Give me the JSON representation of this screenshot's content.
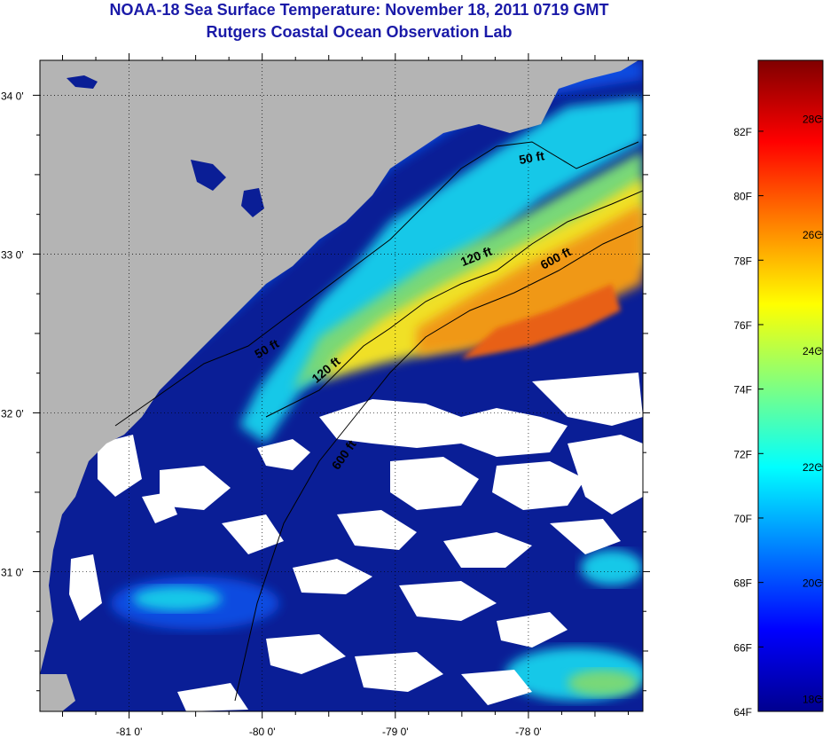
{
  "title": {
    "line1": "NOAA-18 Sea Surface Temperature:  November 18, 2011 0719 GMT",
    "line2": "Rutgers Coastal Ocean Observation Lab"
  },
  "map": {
    "lon_ticks": [
      {
        "value": -81,
        "label": "-81 0'"
      },
      {
        "value": -80,
        "label": "-80 0'"
      },
      {
        "value": -79,
        "label": "-79 0'"
      },
      {
        "value": -78,
        "label": "-78 0'"
      }
    ],
    "lat_ticks": [
      {
        "value": 34,
        "label": "34 0'"
      },
      {
        "value": 33,
        "label": "33 0'"
      },
      {
        "value": 32,
        "label": "32 0'"
      },
      {
        "value": 31,
        "label": "31 0'"
      }
    ],
    "lon_range": [
      -81.67,
      -77.14
    ],
    "lat_range": [
      30.12,
      34.22
    ],
    "contour_labels": [
      {
        "text": "50 ft",
        "lon": -77.97,
        "lat": 33.58,
        "angle": -10
      },
      {
        "text": "120 ft",
        "lon": -78.38,
        "lat": 32.96,
        "angle": -22
      },
      {
        "text": "600 ft",
        "lon": -77.78,
        "lat": 32.95,
        "angle": -28
      },
      {
        "text": "50 ft",
        "lon": -79.95,
        "lat": 32.38,
        "angle": -30
      },
      {
        "text": "120 ft",
        "lon": -79.5,
        "lat": 32.25,
        "angle": -40
      },
      {
        "text": "600 ft",
        "lon": -79.36,
        "lat": 31.72,
        "angle": -55
      }
    ],
    "colors": {
      "land": "#b4b4b4",
      "cloud": "#ffffff",
      "deep_blue": "#0a1e96",
      "blue": "#0a4ce0",
      "cyan": "#18c8e8",
      "green": "#78d878",
      "yellow": "#f0e028",
      "orange": "#f09818",
      "red_orange": "#e86018"
    }
  },
  "colorbar": {
    "stops": [
      "#00008f",
      "#0000ff",
      "#0080ff",
      "#00ffff",
      "#80ff80",
      "#ffff00",
      "#ff8000",
      "#ff0000",
      "#800000"
    ],
    "fahrenheit_labels": [
      {
        "value": 64,
        "label": "64F"
      },
      {
        "value": 66,
        "label": "66F"
      },
      {
        "value": 68,
        "label": "68F"
      },
      {
        "value": 70,
        "label": "70F"
      },
      {
        "value": 72,
        "label": "72F"
      },
      {
        "value": 74,
        "label": "74F"
      },
      {
        "value": 76,
        "label": "76F"
      },
      {
        "value": 78,
        "label": "78F"
      },
      {
        "value": 80,
        "label": "80F"
      },
      {
        "value": 82,
        "label": "82F"
      }
    ],
    "celsius_labels": [
      {
        "value": 18,
        "label": "18C"
      },
      {
        "value": 20,
        "label": "20C"
      },
      {
        "value": 22,
        "label": "22C"
      },
      {
        "value": 24,
        "label": "24C"
      },
      {
        "value": 26,
        "label": "26C"
      },
      {
        "value": 28,
        "label": "28C"
      }
    ],
    "range_f": [
      64,
      84.2
    ]
  }
}
